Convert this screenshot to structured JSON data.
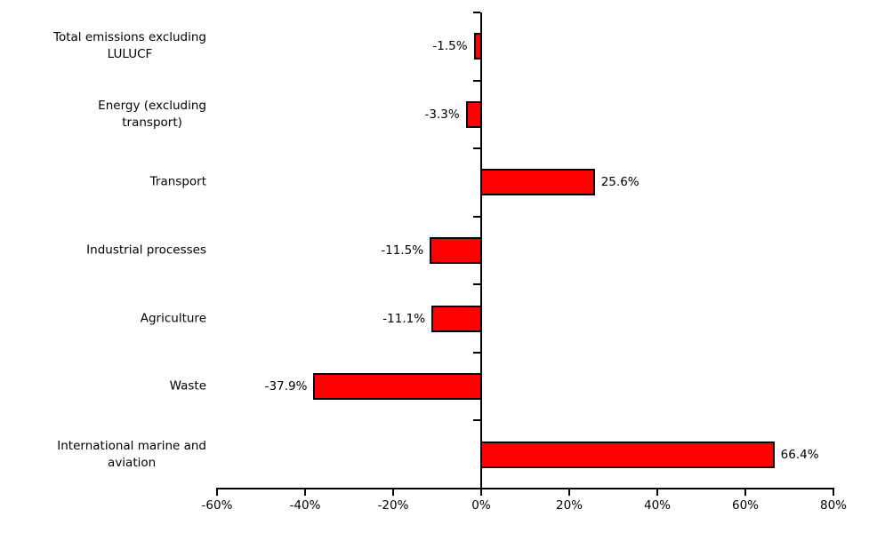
{
  "chart_data": {
    "type": "bar",
    "orientation": "horizontal",
    "title": "",
    "xlabel": "",
    "ylabel": "",
    "categories": [
      "Total emissions excluding LULUCF",
      "Energy (excluding transport)",
      "Transport",
      "Industrial processes",
      "Agriculture",
      "Waste",
      "International marine and aviation"
    ],
    "category_lines": [
      [
        "Total emissions excluding",
        "LULUCF"
      ],
      [
        "Energy (excluding",
        "transport)"
      ],
      [
        "Transport"
      ],
      [
        "Industrial processes"
      ],
      [
        "Agriculture"
      ],
      [
        "Waste"
      ],
      [
        "International marine and",
        "aviation"
      ]
    ],
    "values": [
      -1.5,
      -3.3,
      25.6,
      -11.5,
      -11.1,
      -37.9,
      66.4
    ],
    "value_labels": [
      "-1.5%",
      "-3.3%",
      "25.6%",
      "-11.5%",
      "-11.1%",
      "-37.9%",
      "66.4%"
    ],
    "xlim": [
      -60,
      80
    ],
    "x_ticks": [
      -60,
      -40,
      -20,
      0,
      20,
      40,
      60,
      80
    ],
    "x_tick_labels": [
      "-60%",
      "-40%",
      "-20%",
      "0%",
      "20%",
      "40%",
      "60%",
      "80%"
    ],
    "grid": false,
    "legend": false,
    "colors": {
      "bar_fill": "#FF0000",
      "bar_border": "#000000",
      "axis": "#000000",
      "text": "#000000",
      "background": "#FFFFFF"
    }
  }
}
